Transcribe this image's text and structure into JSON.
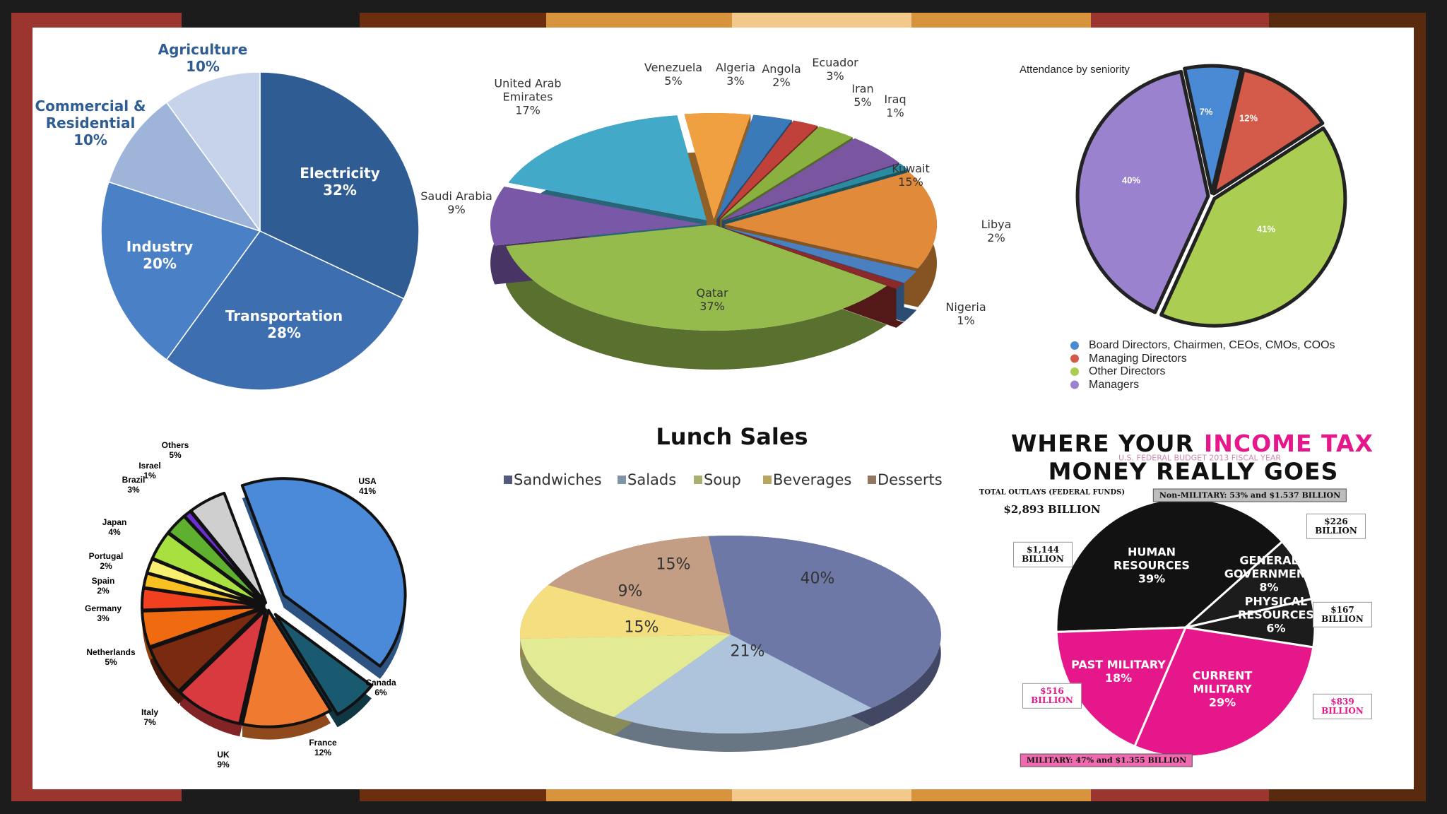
{
  "chart_data": [
    {
      "type": "pie",
      "categories": [
        "Electricity",
        "Transportation",
        "Industry",
        "Commercial & Residential",
        "Agriculture"
      ],
      "values": [
        32,
        28,
        20,
        10,
        10
      ],
      "value_labels": [
        "32%",
        "28%",
        "20%",
        "10%",
        "10%"
      ],
      "colors": [
        "#2f5d93",
        "#3d6eaf",
        "#4a80c6",
        "#9fb4d9",
        "#c7d3ea"
      ]
    },
    {
      "type": "pie",
      "categories": [
        "Venezuela",
        "Algeria",
        "Angola",
        "Ecuador",
        "Iran",
        "Iraq",
        "Kuwait",
        "Libya",
        "Nigeria",
        "Qatar",
        "Saudi Arabia",
        "United Arab Emirates"
      ],
      "values": [
        5,
        3,
        2,
        3,
        5,
        1,
        15,
        2,
        1,
        37,
        9,
        17
      ],
      "value_labels": [
        "5%",
        "3%",
        "2%",
        "3%",
        "5%",
        "1%",
        "15%",
        "2%",
        "1%",
        "37%",
        "9%",
        "17%"
      ],
      "colors": [
        "#f0a040",
        "#3a7ab8",
        "#c0403a",
        "#8ab040",
        "#7a55a0",
        "#2a8aa0",
        "#e08a3a",
        "#4a80c0",
        "#8a2a2a",
        "#94bb4c",
        "#7a58a8",
        "#42a9c8"
      ]
    },
    {
      "type": "pie",
      "title": "Attendance by seniority",
      "categories": [
        "Board Directors, Chairmen, CEOs, CMOs, COOs",
        "Managing Directors",
        "Other Directors",
        "Managers"
      ],
      "values": [
        7,
        12,
        41,
        40
      ],
      "value_labels": [
        "7%",
        "12%",
        "41%",
        "40%"
      ],
      "colors": [
        "#4a8ad4",
        "#d45a4a",
        "#aacd52",
        "#9a82cf"
      ],
      "legend": "bottom-left"
    },
    {
      "type": "pie",
      "categories": [
        "USA",
        "Canada",
        "France",
        "UK",
        "Italy",
        "Netherlands",
        "Germany",
        "Spain",
        "Portugal",
        "Japan",
        "Brazil",
        "Israel",
        "Others"
      ],
      "values": [
        41,
        6,
        12,
        9,
        7,
        5,
        3,
        2,
        2,
        4,
        3,
        1,
        5
      ],
      "value_labels": [
        "41%",
        "6%",
        "12%",
        "9%",
        "7%",
        "5%",
        "3%",
        "2%",
        "2%",
        "4%",
        "3%",
        "1%",
        "5%"
      ],
      "colors": [
        "#4a8ad8",
        "#1a5a70",
        "#f07a30",
        "#d83a40",
        "#7a2a10",
        "#f06a10",
        "#f04020",
        "#f8c020",
        "#f8f070",
        "#a8e040",
        "#60b030",
        "#6a30d0",
        "#cfcfcf"
      ]
    },
    {
      "type": "pie",
      "title": "Lunch Sales",
      "categories": [
        "Sandwiches",
        "Salads",
        "Soup",
        "Beverages",
        "Desserts"
      ],
      "values": [
        40,
        21,
        15,
        9,
        15
      ],
      "value_labels": [
        "40%",
        "21%",
        "15%",
        "9%",
        "15%"
      ],
      "colors": [
        "#6e78a6",
        "#adc4dc",
        "#e2ea94",
        "#f5de80",
        "#c49e84"
      ],
      "legend": "top"
    },
    {
      "type": "pie",
      "title": [
        "WHERE YOUR",
        "INCOME TAX",
        "MONEY REALLY GOES"
      ],
      "subtitle": "U.S. FEDERAL BUDGET 2013 FISCAL YEAR",
      "categories": [
        "HUMAN RESOURCES",
        "GENERAL GOVERNMENT",
        "PHYSICAL RESOURCES",
        "CURRENT MILITARY",
        "PAST MILITARY"
      ],
      "values": [
        39,
        8,
        6,
        29,
        18
      ],
      "value_labels": [
        "39%",
        "8%",
        "6%",
        "29%",
        "18%"
      ],
      "colors": [
        "#121212",
        "#1c1c1c",
        "#1c1c1c",
        "#e6178b",
        "#e6178b"
      ],
      "annotations": [
        "TOTAL OUTLAYS (FEDERAL FUNDS)",
        "$2,893 BILLION",
        "Non-MILITARY: 53% and $1.537 BILLION",
        "MILITARY: 47% and $1.355 BILLION",
        "$1,144 BILLION",
        "$226 BILLION",
        "$167 BILLION",
        "$516 BILLION",
        "$839 BILLION"
      ]
    }
  ]
}
